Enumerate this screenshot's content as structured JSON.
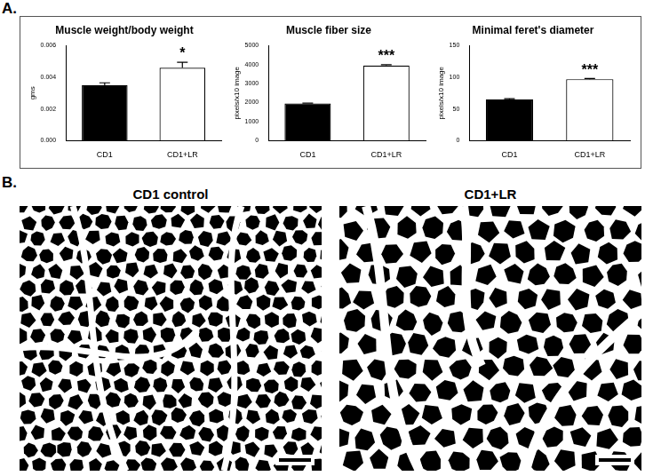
{
  "panel_labels": [
    "A.",
    "B."
  ],
  "chart_data": [
    {
      "type": "bar",
      "title": "Muscle weight/body weight",
      "y_label": "gms",
      "categories": [
        "CD1",
        "CD1+LR"
      ],
      "values": [
        0.0035,
        0.0046
      ],
      "errors": [
        0.00015,
        0.00035
      ],
      "colors": [
        "#000000",
        "#ffffff"
      ],
      "ylim": [
        0,
        0.006
      ],
      "yticks": [
        {
          "value": 0,
          "label": "0.000"
        },
        {
          "value": 0.002,
          "label": "0.002"
        },
        {
          "value": 0.004,
          "label": "0.004"
        },
        {
          "value": 0.006,
          "label": "0.006"
        }
      ],
      "grid": false,
      "annotations": [
        {
          "category": "CD1+LR",
          "text": "*"
        }
      ]
    },
    {
      "type": "bar",
      "title": "Muscle fiber size",
      "y_label": "pixels/x10 image",
      "categories": [
        "CD1",
        "CD1+LR"
      ],
      "values": [
        1950,
        3950
      ],
      "errors": [
        20,
        40
      ],
      "colors": [
        "#000000",
        "#ffffff"
      ],
      "ylim": [
        0,
        5000
      ],
      "yticks": [
        0,
        1000,
        2000,
        3000,
        4000,
        5000
      ],
      "grid": false,
      "annotations": [
        {
          "category": "CD1+LR",
          "text": "***"
        }
      ]
    },
    {
      "type": "bar",
      "title": "Minimal feret's diameter",
      "y_label": "pixels/x10 image",
      "categories": [
        "CD1",
        "CD1+LR"
      ],
      "values": [
        65,
        97
      ],
      "errors": [
        1,
        1
      ],
      "colors": [
        "#000000",
        "#ffffff"
      ],
      "ylim": [
        0,
        150
      ],
      "yticks": [
        0,
        50,
        100,
        150
      ],
      "grid": false,
      "annotations": [
        {
          "category": "CD1+LR",
          "text": "***"
        }
      ]
    }
  ],
  "images": [
    {
      "title": "CD1 control"
    },
    {
      "title": "CD1+LR"
    }
  ]
}
